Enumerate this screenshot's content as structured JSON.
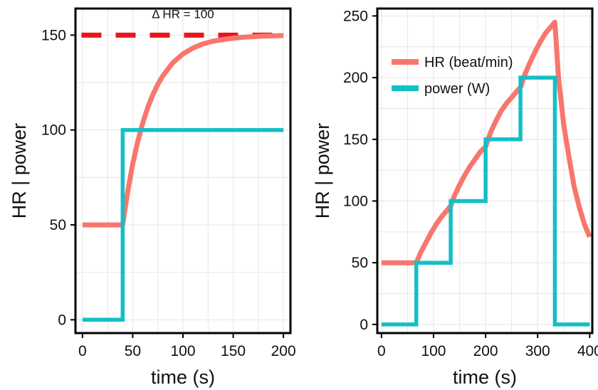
{
  "colors": {
    "hr": "#f8766d",
    "power": "#12c0c6",
    "target": "#e8141e"
  },
  "chart_data": [
    {
      "type": "line",
      "title": "",
      "xlabel": "time (s)",
      "ylabel": "HR | power",
      "xlim": [
        -7,
        207
      ],
      "ylim": [
        -7,
        164
      ],
      "xticks": [
        0,
        50,
        100,
        150,
        200
      ],
      "yticks": [
        0,
        50,
        100,
        150
      ],
      "grid": true,
      "annotation": {
        "text": "Δ HR = 100",
        "x": 100,
        "y": 159
      },
      "reference_line": {
        "y": 150,
        "style": "dashed"
      },
      "series": [
        {
          "key": "hr",
          "x": [
            0,
            40,
            45,
            50,
            55,
            60,
            65,
            70,
            75,
            80,
            90,
            100,
            110,
            120,
            130,
            140,
            150,
            160,
            170,
            180,
            190,
            200
          ],
          "y": [
            50,
            50,
            67.6,
            82.1,
            94.0,
            103.8,
            111.9,
            118.6,
            124.1,
            128.6,
            135.5,
            140.1,
            143.2,
            145.4,
            146.8,
            147.7,
            148.4,
            148.9,
            149.2,
            149.5,
            149.6,
            149.8
          ]
        },
        {
          "key": "power",
          "x": [
            0,
            40,
            40,
            200
          ],
          "y": [
            0,
            0,
            100,
            100
          ]
        }
      ]
    },
    {
      "type": "line",
      "title": "",
      "xlabel": "time (s)",
      "ylabel": "HR | power",
      "xlim": [
        -8,
        405
      ],
      "ylim": [
        -7,
        256
      ],
      "xticks": [
        0,
        100,
        200,
        300,
        400
      ],
      "yticks": [
        0,
        50,
        100,
        150,
        200,
        250
      ],
      "grid": true,
      "legend_position": "top-left",
      "series": [
        {
          "key": "hr",
          "name": "HR (beat/min)",
          "x": [
            0,
            67,
            75,
            85,
            95,
            105,
            115,
            125,
            133,
            140,
            150,
            160,
            170,
            180,
            190,
            200,
            210,
            220,
            230,
            240,
            250,
            260,
            267,
            275,
            285,
            295,
            305,
            315,
            325,
            333,
            340,
            350,
            360,
            370,
            380,
            390,
            400
          ],
          "y": [
            50,
            50,
            58,
            66,
            74,
            81,
            87,
            92,
            96,
            104,
            113,
            121,
            128,
            134,
            140,
            144,
            156,
            165,
            173,
            179,
            184,
            189,
            192,
            202,
            212,
            221,
            229,
            236,
            241,
            245,
            200,
            162,
            136,
            112,
            95,
            81,
            71
          ]
        },
        {
          "key": "power",
          "name": "power (W)",
          "x": [
            0,
            67,
            67,
            133,
            133,
            200,
            200,
            267,
            267,
            333,
            333,
            400
          ],
          "y": [
            0,
            0,
            50,
            50,
            100,
            100,
            150,
            150,
            200,
            200,
            0,
            0
          ]
        }
      ]
    }
  ]
}
